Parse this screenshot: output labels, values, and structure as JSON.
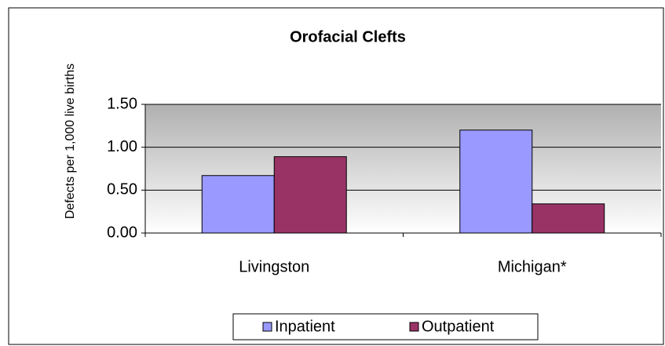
{
  "chart_data": {
    "type": "bar",
    "title": "Orofacial Clefts",
    "y_label": "Defects per 1,000 live births",
    "categories": [
      "Livingston",
      "Michigan*"
    ],
    "series": [
      {
        "name": "Inpatient",
        "color": "#9999ff",
        "values": [
          0.67,
          1.2
        ]
      },
      {
        "name": "Outpatient",
        "color": "#993366",
        "values": [
          0.89,
          0.34
        ]
      }
    ],
    "ylim": [
      0,
      1.5
    ],
    "yticks": [
      {
        "value": 0,
        "label": "0.00"
      },
      {
        "value": 0.5,
        "label": "0.50"
      },
      {
        "value": 1,
        "label": "1.00"
      },
      {
        "value": 1.5,
        "label": "1.50"
      }
    ],
    "grid": true,
    "legend": "bottom"
  }
}
